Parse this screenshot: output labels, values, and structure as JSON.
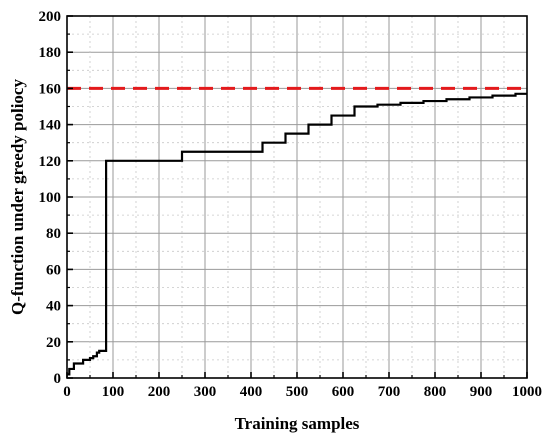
{
  "chart_data": {
    "type": "line",
    "title": "",
    "xlabel": "Training samples",
    "ylabel": "Q-function under greedy poliocy",
    "xlim": [
      0,
      1000
    ],
    "ylim": [
      0,
      200
    ],
    "x_ticks": [
      0,
      100,
      200,
      300,
      400,
      500,
      600,
      700,
      800,
      900,
      1000
    ],
    "y_ticks": [
      0,
      20,
      40,
      60,
      80,
      100,
      120,
      140,
      160,
      180,
      200
    ],
    "grid": true,
    "minor_grid": true,
    "legend": "none",
    "series": [
      {
        "style": "step",
        "color": "#000000",
        "x": [
          0,
          5,
          5,
          15,
          15,
          35,
          35,
          50,
          50,
          57,
          57,
          65,
          65,
          70,
          70,
          85,
          85,
          250,
          250,
          425,
          425,
          475,
          475,
          525,
          525,
          575,
          575,
          625,
          625,
          675,
          675,
          725,
          725,
          775,
          775,
          825,
          825,
          875,
          875,
          925,
          925,
          975,
          975,
          1000
        ],
        "y": [
          2,
          2,
          5,
          5,
          8,
          8,
          10,
          10,
          11,
          11,
          12,
          12,
          14,
          14,
          15,
          15,
          120,
          120,
          125,
          125,
          130,
          130,
          135,
          135,
          140,
          140,
          145,
          145,
          150,
          150,
          151,
          151,
          152,
          152,
          153,
          153,
          154,
          154,
          155,
          155,
          156,
          156,
          157,
          157
        ]
      },
      {
        "style": "dashed",
        "color": "#e31a1c",
        "x": [
          0,
          1000
        ],
        "y": [
          160,
          160
        ]
      }
    ]
  }
}
